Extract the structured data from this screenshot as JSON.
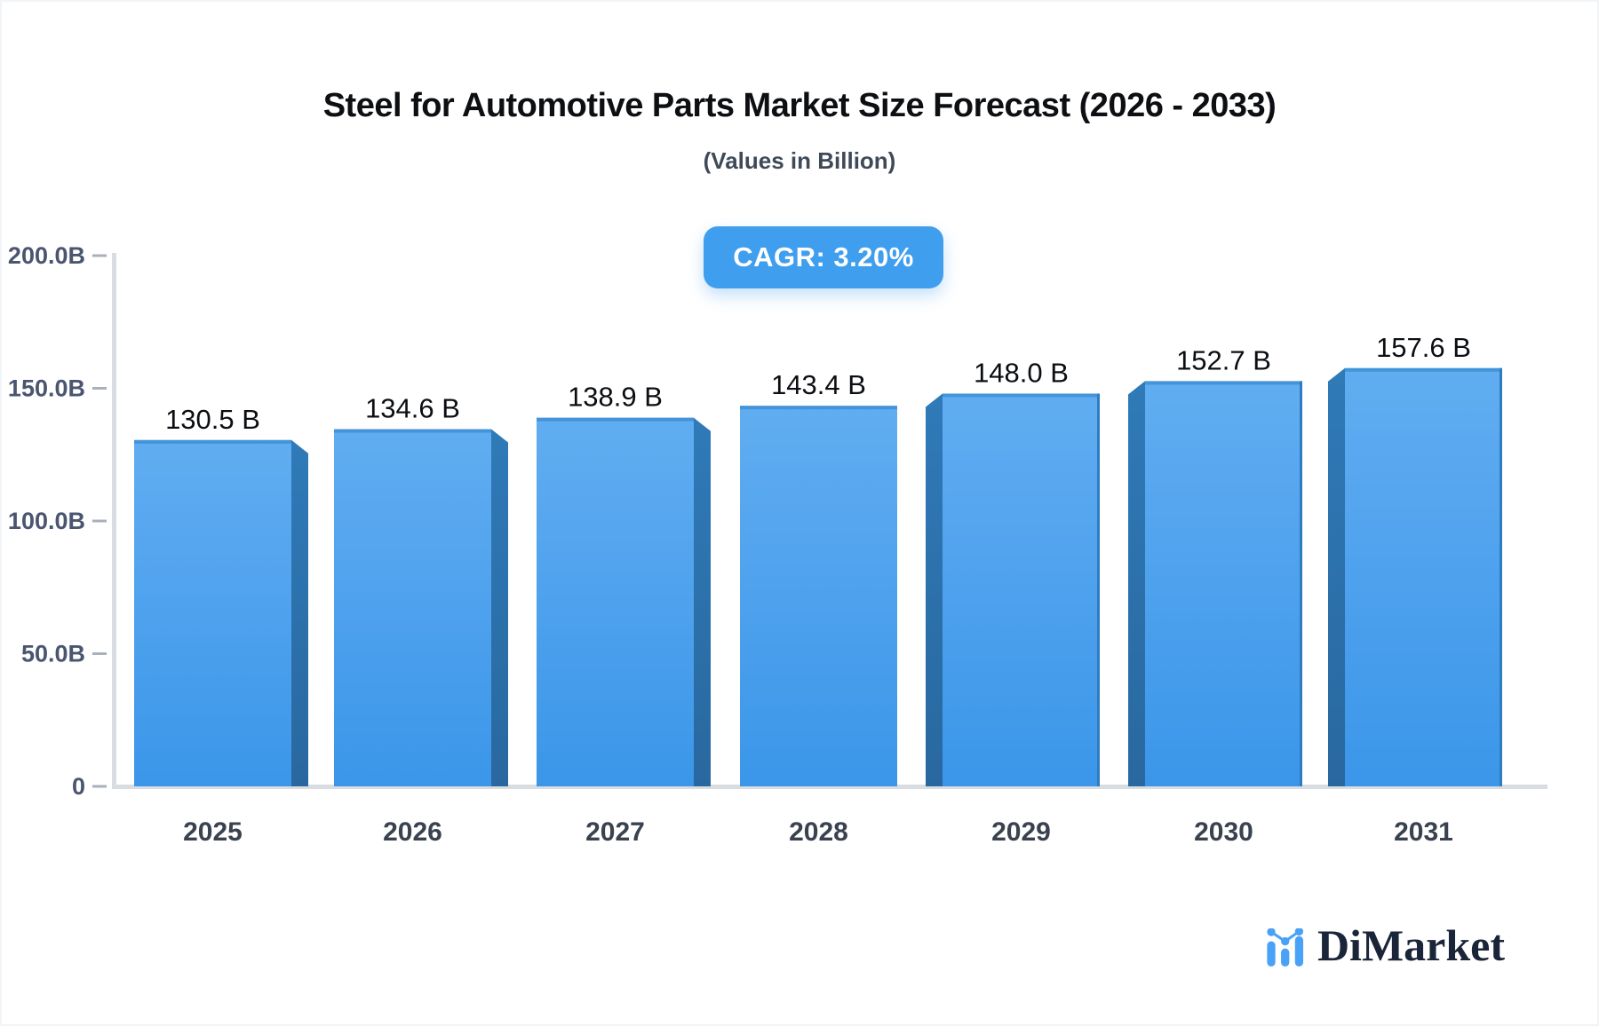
{
  "chart_data": {
    "type": "bar",
    "title": "Steel for Automotive Parts Market Size Forecast (2026 - 2033)",
    "subtitle": "(Values in Billion)",
    "cagr_label": "CAGR: 3.20%",
    "categories": [
      "2025",
      "2026",
      "2027",
      "2028",
      "2029",
      "2030",
      "2031"
    ],
    "values": [
      130.5,
      134.6,
      138.9,
      143.4,
      148.0,
      152.7,
      157.6
    ],
    "value_labels": [
      "130.5 B",
      "134.6 B",
      "138.9 B",
      "143.4 B",
      "148.0 B",
      "152.7 B",
      "157.6 B"
    ],
    "ylim": [
      0,
      200
    ],
    "yticks": [
      {
        "v": 0,
        "label": "0"
      },
      {
        "v": 50,
        "label": "50.0B"
      },
      {
        "v": 100,
        "label": "100.0B"
      },
      {
        "v": 150,
        "label": "150.0B"
      },
      {
        "v": 200,
        "label": "200.0B"
      }
    ],
    "grid": false,
    "legend": null,
    "bar_style": "3d-perspective-extrusion"
  },
  "logo": {
    "text": "DiMarket"
  },
  "colors": {
    "title_color": "#0d0f13",
    "subtitle_color": "#3f4a59",
    "badge_bg": "#3f9eee",
    "bar_face_top": "#61adf1",
    "bar_face_bottom": "#3b96e9",
    "bar_side_top": "#2f7ab8",
    "bar_side_bottom": "#29689f",
    "bar_top_edge": "#4494da",
    "bar_right_edge": "#2e7dc0",
    "axis_color": "#d9dce1",
    "value_label_color": "#0b0e12",
    "ytick_label_color": "#4a5570",
    "category_label_color": "#39424e",
    "logo_blue": "#4aa2f6",
    "logo_navy": "#1b2539"
  }
}
